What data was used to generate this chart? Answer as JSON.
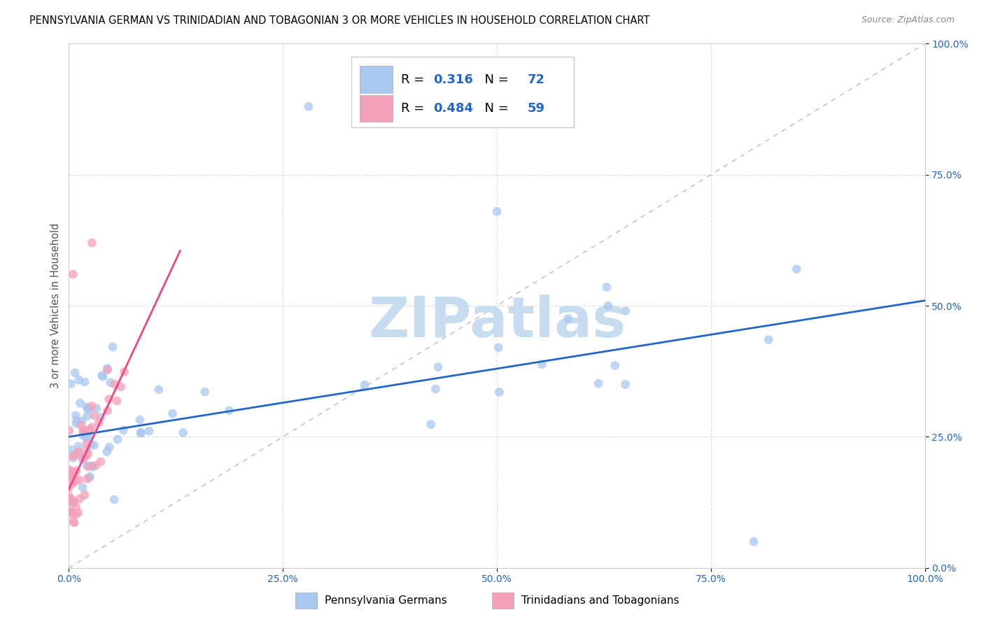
{
  "title": "PENNSYLVANIA GERMAN VS TRINIDADIAN AND TOBAGONIAN 3 OR MORE VEHICLES IN HOUSEHOLD CORRELATION CHART",
  "source": "Source: ZipAtlas.com",
  "ylabel": "3 or more Vehicles in Household",
  "x_tick_labels": [
    "0.0%",
    "25.0%",
    "50.0%",
    "75.0%",
    "100.0%"
  ],
  "y_tick_labels": [
    "0.0%",
    "25.0%",
    "50.0%",
    "75.0%",
    "100.0%"
  ],
  "blue_color": "#A8C8F0",
  "pink_color": "#F4A0B8",
  "blue_line_color": "#2266CC",
  "pink_line_color": "#EE4488",
  "diag_line_color": "#BBBBBB",
  "legend_R_blue": "0.316",
  "legend_N_blue": "72",
  "legend_R_pink": "0.484",
  "legend_N_pink": "59",
  "legend_label_blue": "Pennsylvania Germans",
  "legend_label_pink": "Trinidadians and Tobagonians",
  "watermark": "ZIPatlas",
  "watermark_color": "#C8DCF0",
  "blue_line_intercept": 25.0,
  "blue_line_slope": 0.26,
  "pink_line_intercept": 15.0,
  "pink_line_slope": 3.5,
  "pink_line_x_max": 13.0,
  "xlim": [
    0,
    100
  ],
  "ylim": [
    0,
    100
  ],
  "grid_color": "#DDDDDD",
  "bg_color": "#FFFFFF",
  "title_fontsize": 10.5,
  "axis_label_color": "#555555",
  "tick_color": "#2266CC",
  "value_color": "#2266CC",
  "label_color": "#000000"
}
